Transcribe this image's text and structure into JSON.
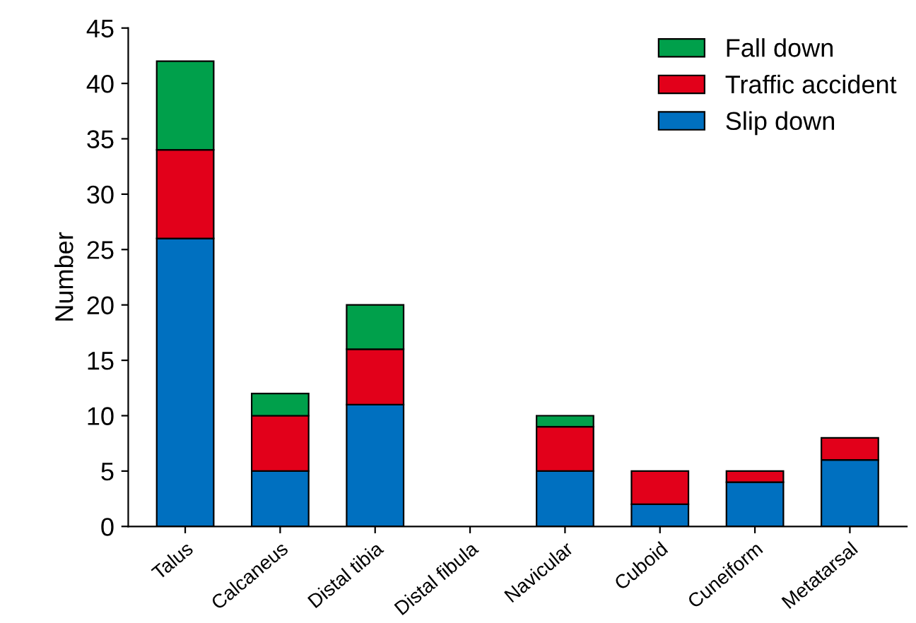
{
  "chart_data": {
    "type": "bar",
    "stacked": true,
    "ylabel": "Number",
    "categories": [
      "Talus",
      "Calcaneus",
      "Distal tibia",
      "Distal fibula",
      "Navicular",
      "Cuboid",
      "Cuneiform",
      "Metatarsal"
    ],
    "series": [
      {
        "name": "Slip down",
        "color": "#0070c0",
        "values": [
          26,
          5,
          11,
          0,
          5,
          2,
          4,
          6
        ]
      },
      {
        "name": "Traffic accident",
        "color": "#e2001a",
        "values": [
          8,
          5,
          5,
          0,
          4,
          3,
          1,
          2
        ]
      },
      {
        "name": "Fall down",
        "color": "#00a04b",
        "values": [
          8,
          2,
          4,
          0,
          1,
          0,
          0,
          0
        ]
      }
    ],
    "ylim": [
      0,
      45
    ],
    "yticks": [
      0,
      5,
      10,
      15,
      20,
      25,
      30,
      35,
      40,
      45
    ],
    "grid": false,
    "legend": "top right"
  }
}
